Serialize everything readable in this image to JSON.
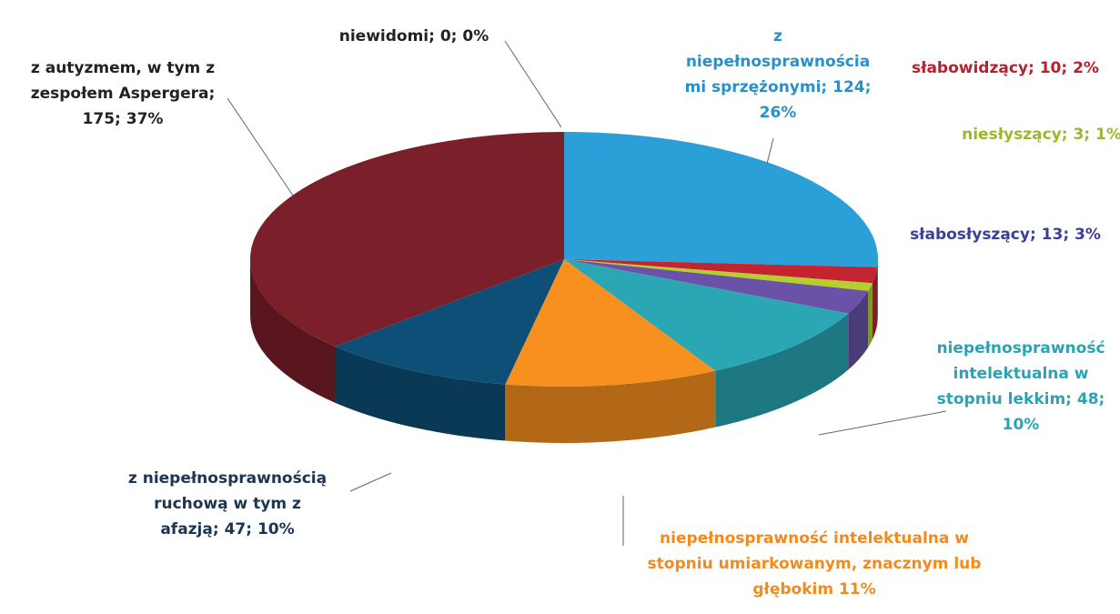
{
  "chart_data": {
    "type": "pie",
    "values": [
      26,
      2,
      1,
      3,
      10,
      11,
      10,
      37,
      0
    ],
    "colors": [
      "#2b9fd8",
      "#c3242f",
      "#b5cf2e",
      "#6a52a8",
      "#2aa6b4",
      "#f7901e",
      "#0d4f76",
      "#7b1f2b",
      "#444444"
    ],
    "labels": [
      [
        "z",
        "niepełnosprawnościa",
        "mi sprzężonymi; 124;",
        "26%"
      ],
      [
        "słabowidzący; 10; 2%"
      ],
      [
        "niesłyszący; 3; 1%"
      ],
      [
        "słabosłyszący; 13; 3%"
      ],
      [
        "niepełnosprawność",
        "intelektualna w",
        "stopniu lekkim; 48;",
        "10%"
      ],
      [
        "niepełnosprawność intelektualna w",
        "stopniu umiarkowanym, znacznym lub",
        "głębokim 11%"
      ],
      [
        "z niepełnosprawnością",
        "ruchową w tym z",
        "afazją; 47; 10%"
      ],
      [
        "z autyzmem, w tym z",
        "zespołem Aspergera;",
        "175; 37%"
      ],
      [
        "niewidomi; 0; 0%"
      ]
    ]
  }
}
